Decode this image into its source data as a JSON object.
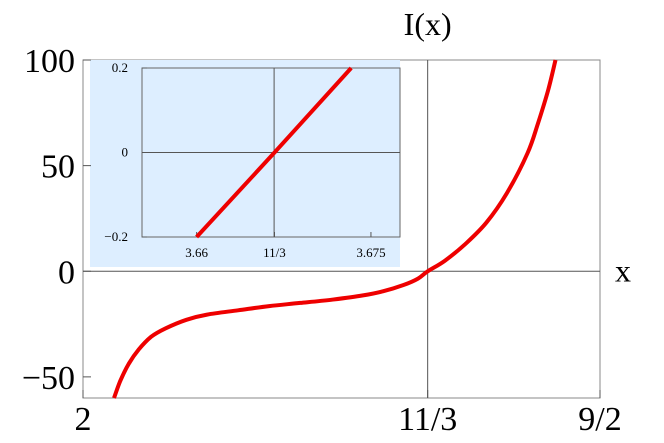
{
  "chart_data": [
    {
      "type": "line",
      "title": "",
      "xlabel": "x",
      "ylabel": "I(x)",
      "xlim": [
        2.0,
        4.5
      ],
      "ylim": [
        -60,
        100
      ],
      "xticks": [
        {
          "value": 2.0,
          "label": "2"
        },
        {
          "value": 3.6667,
          "label": "11/3"
        },
        {
          "value": 4.5,
          "label": "9/2"
        }
      ],
      "yticks": [
        {
          "value": 100,
          "label": "100"
        },
        {
          "value": 50,
          "label": "50"
        },
        {
          "value": 0,
          "label": "0"
        },
        {
          "value": -50,
          "label": "−50"
        }
      ],
      "series": [
        {
          "color": "#ee0000",
          "points": [
            [
              2.15,
              -60
            ],
            [
              2.18,
              -52
            ],
            [
              2.22,
              -44
            ],
            [
              2.27,
              -37
            ],
            [
              2.33,
              -31
            ],
            [
              2.4,
              -27
            ],
            [
              2.5,
              -23
            ],
            [
              2.6,
              -20.5
            ],
            [
              2.75,
              -18.5
            ],
            [
              2.9,
              -16.5
            ],
            [
              3.05,
              -15
            ],
            [
              3.2,
              -13.5
            ],
            [
              3.35,
              -11.5
            ],
            [
              3.45,
              -9.5
            ],
            [
              3.55,
              -6.5
            ],
            [
              3.62,
              -3.5
            ],
            [
              3.6667,
              0
            ],
            [
              3.75,
              5
            ],
            [
              3.85,
              13
            ],
            [
              3.95,
              23
            ],
            [
              4.05,
              37
            ],
            [
              4.15,
              56
            ],
            [
              4.2,
              70
            ],
            [
              4.25,
              86
            ],
            [
              4.285,
              100
            ]
          ]
        }
      ]
    },
    {
      "type": "line",
      "title": "",
      "xlabel": "",
      "ylabel": "",
      "xlim": [
        3.6553,
        3.6775
      ],
      "ylim": [
        -0.2,
        0.2
      ],
      "background": "#ddeeff",
      "xticks": [
        {
          "value": 3.66,
          "label": "3.66"
        },
        {
          "value": 3.6667,
          "label": "11/3"
        },
        {
          "value": 3.675,
          "label": "3.675"
        }
      ],
      "yticks": [
        {
          "value": 0.2,
          "label": "0.2"
        },
        {
          "value": 0,
          "label": "0"
        },
        {
          "value": -0.2,
          "label": "−0.2"
        }
      ],
      "series": [
        {
          "color": "#ee0000",
          "points": [
            [
              3.66,
              -0.2
            ],
            [
              3.6667,
              0
            ],
            [
              3.6733,
              0.2
            ]
          ]
        }
      ]
    }
  ]
}
